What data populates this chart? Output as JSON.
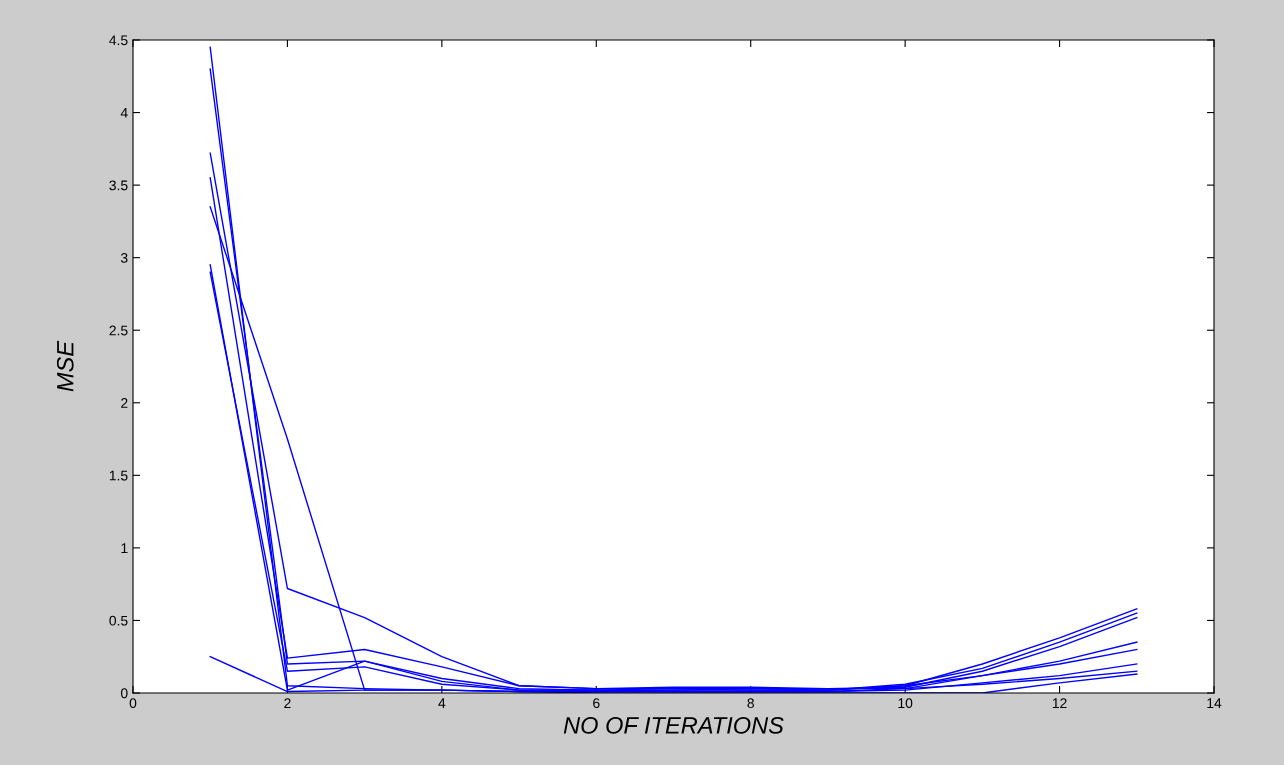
{
  "chart_data": {
    "type": "line",
    "xlabel": "NO OF ITERATIONS",
    "ylabel": "MSE",
    "x": [
      1,
      2,
      3,
      4,
      5,
      6,
      7,
      8,
      9,
      10,
      11,
      12,
      13
    ],
    "xlim": [
      0,
      14
    ],
    "xticks": [
      0,
      2,
      4,
      6,
      8,
      10,
      12,
      14
    ],
    "ylim": [
      0,
      4.5
    ],
    "yticks": [
      0,
      0.5,
      1,
      1.5,
      2,
      2.5,
      3,
      3.5,
      4,
      4.5
    ],
    "marker": "none",
    "line_style": "solid",
    "series": [
      {
        "color": "#0000ff",
        "values": [
          4.45,
          0.05,
          0.03,
          0.02,
          0.01,
          0.01,
          0.02,
          0.02,
          0.02,
          0.05,
          0.2,
          0.38,
          0.58
        ]
      },
      {
        "color": "#0000ff",
        "values": [
          4.3,
          0.2,
          0.22,
          0.08,
          0.02,
          0.02,
          0.03,
          0.03,
          0.02,
          0.06,
          0.17,
          0.35,
          0.55
        ]
      },
      {
        "color": "#0000ff",
        "values": [
          3.72,
          0.72,
          0.52,
          0.25,
          0.05,
          0.03,
          0.04,
          0.04,
          0.03,
          0.04,
          0.15,
          0.32,
          0.52
        ]
      },
      {
        "color": "#0000ff",
        "values": [
          3.35,
          1.75,
          0.02,
          0.02,
          0.01,
          0.01,
          0.01,
          0.01,
          0.01,
          0.03,
          0.12,
          0.22,
          0.35
        ]
      },
      {
        "color": "#0000ff",
        "values": [
          3.55,
          0.24,
          0.3,
          0.18,
          0.05,
          0.03,
          0.03,
          0.02,
          0.02,
          0.05,
          0.12,
          0.2,
          0.3
        ]
      },
      {
        "color": "#0000ff",
        "values": [
          2.95,
          0.02,
          0.22,
          0.1,
          0.03,
          0.02,
          0.01,
          0.01,
          0.01,
          0.02,
          0.07,
          0.12,
          0.2
        ]
      },
      {
        "color": "#0000ff",
        "values": [
          2.9,
          0.15,
          0.18,
          0.06,
          0.02,
          0.02,
          0.02,
          0.03,
          0.03,
          0.03,
          0.06,
          0.1,
          0.15
        ]
      },
      {
        "color": "#0000ff",
        "values": [
          0.25,
          0.01,
          0.02,
          0.02,
          0.01,
          0.0,
          0.0,
          0.0,
          0.0,
          0.0,
          0.0,
          0.07,
          0.13
        ]
      }
    ]
  }
}
